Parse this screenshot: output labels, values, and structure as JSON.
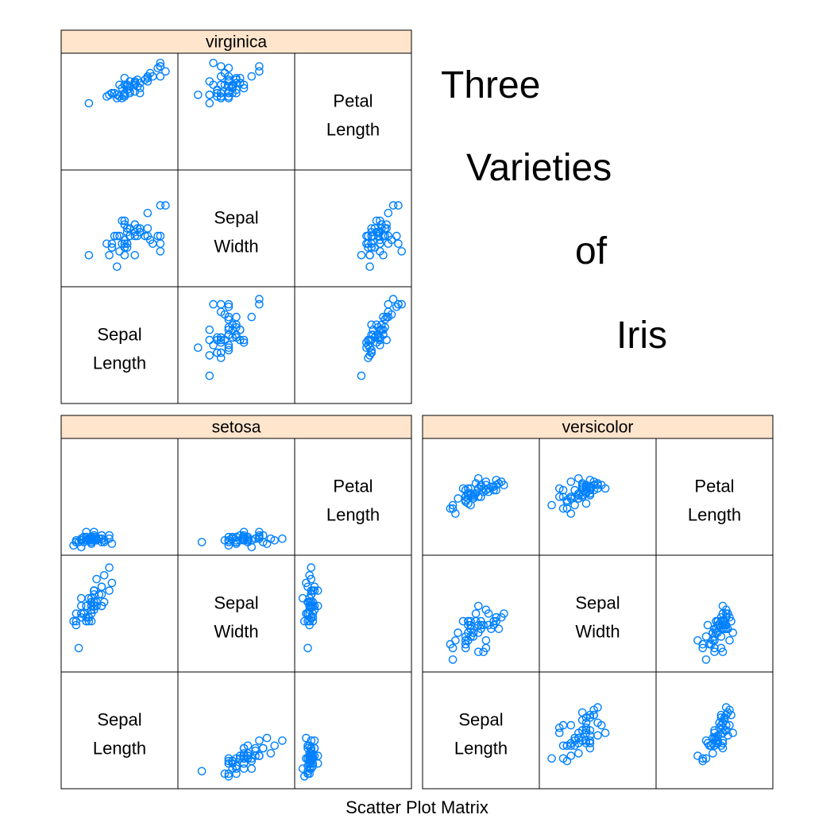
{
  "page": {
    "title_words": [
      "Three",
      "Varieties",
      "of",
      "Iris"
    ],
    "xlabel": "Scatter Plot Matrix"
  },
  "style": {
    "strip_bg": "#ffe5cc",
    "point_color": "#0080ff",
    "frame_color": "#000000"
  },
  "chart_data": {
    "type": "scatter",
    "variables": [
      {
        "name": "Sepal.Length",
        "label": [
          "Sepal",
          "Length"
        ]
      },
      {
        "name": "Sepal.Width",
        "label": [
          "Sepal",
          "Width"
        ]
      },
      {
        "name": "Petal.Length",
        "label": [
          "Petal",
          "Length"
        ]
      }
    ],
    "ranges": {
      "Sepal.Length": [
        4.0,
        8.2
      ],
      "Sepal.Width": [
        1.8,
        4.6
      ],
      "Petal.Length": [
        0.8,
        7.2
      ]
    },
    "panels": [
      {
        "species": "setosa",
        "points": [
          [
            5.1,
            3.5,
            1.4
          ],
          [
            4.9,
            3.0,
            1.4
          ],
          [
            4.7,
            3.2,
            1.3
          ],
          [
            4.6,
            3.1,
            1.5
          ],
          [
            5.0,
            3.6,
            1.4
          ],
          [
            5.4,
            3.9,
            1.7
          ],
          [
            4.6,
            3.4,
            1.4
          ],
          [
            5.0,
            3.4,
            1.5
          ],
          [
            4.4,
            2.9,
            1.4
          ],
          [
            4.9,
            3.1,
            1.5
          ],
          [
            5.4,
            3.7,
            1.5
          ],
          [
            4.8,
            3.4,
            1.6
          ],
          [
            4.8,
            3.0,
            1.4
          ],
          [
            4.3,
            3.0,
            1.1
          ],
          [
            5.8,
            4.0,
            1.2
          ],
          [
            5.7,
            4.4,
            1.5
          ],
          [
            5.4,
            3.9,
            1.3
          ],
          [
            5.1,
            3.5,
            1.4
          ],
          [
            5.7,
            3.8,
            1.7
          ],
          [
            5.1,
            3.8,
            1.5
          ],
          [
            5.4,
            3.4,
            1.7
          ],
          [
            5.1,
            3.7,
            1.5
          ],
          [
            4.6,
            3.6,
            1.0
          ],
          [
            5.1,
            3.3,
            1.7
          ],
          [
            4.8,
            3.4,
            1.9
          ],
          [
            5.0,
            3.0,
            1.6
          ],
          [
            5.0,
            3.4,
            1.6
          ],
          [
            5.2,
            3.5,
            1.5
          ],
          [
            5.2,
            3.4,
            1.4
          ],
          [
            4.7,
            3.2,
            1.6
          ],
          [
            4.8,
            3.1,
            1.6
          ],
          [
            5.4,
            3.4,
            1.5
          ],
          [
            5.2,
            4.1,
            1.5
          ],
          [
            5.5,
            4.2,
            1.4
          ],
          [
            4.9,
            3.1,
            1.5
          ],
          [
            5.0,
            3.2,
            1.2
          ],
          [
            5.5,
            3.5,
            1.3
          ],
          [
            4.9,
            3.6,
            1.4
          ],
          [
            4.4,
            3.0,
            1.3
          ],
          [
            5.1,
            3.4,
            1.5
          ],
          [
            5.0,
            3.5,
            1.3
          ],
          [
            4.5,
            2.3,
            1.3
          ],
          [
            4.4,
            3.2,
            1.3
          ],
          [
            5.0,
            3.5,
            1.6
          ],
          [
            5.1,
            3.8,
            1.9
          ],
          [
            4.8,
            3.0,
            1.4
          ],
          [
            5.1,
            3.8,
            1.6
          ],
          [
            4.6,
            3.2,
            1.4
          ],
          [
            5.3,
            3.7,
            1.5
          ],
          [
            5.0,
            3.3,
            1.4
          ]
        ]
      },
      {
        "species": "versicolor",
        "points": [
          [
            7.0,
            3.2,
            4.7
          ],
          [
            6.4,
            3.2,
            4.5
          ],
          [
            6.9,
            3.1,
            4.9
          ],
          [
            5.5,
            2.3,
            4.0
          ],
          [
            6.5,
            2.8,
            4.6
          ],
          [
            5.7,
            2.8,
            4.5
          ],
          [
            6.3,
            3.3,
            4.7
          ],
          [
            4.9,
            2.4,
            3.3
          ],
          [
            6.6,
            2.9,
            4.6
          ],
          [
            5.2,
            2.7,
            3.9
          ],
          [
            5.0,
            2.0,
            3.5
          ],
          [
            5.9,
            3.0,
            4.2
          ],
          [
            6.0,
            2.2,
            4.0
          ],
          [
            6.1,
            2.9,
            4.7
          ],
          [
            5.6,
            2.9,
            3.6
          ],
          [
            6.7,
            3.1,
            4.4
          ],
          [
            5.6,
            3.0,
            4.5
          ],
          [
            5.8,
            2.7,
            4.1
          ],
          [
            6.2,
            2.2,
            4.5
          ],
          [
            5.6,
            2.5,
            3.9
          ],
          [
            5.9,
            3.2,
            4.8
          ],
          [
            6.1,
            2.8,
            4.0
          ],
          [
            6.3,
            2.5,
            4.9
          ],
          [
            6.1,
            2.8,
            4.7
          ],
          [
            6.4,
            2.9,
            4.3
          ],
          [
            6.6,
            3.0,
            4.4
          ],
          [
            6.8,
            2.8,
            4.8
          ],
          [
            6.7,
            3.0,
            5.0
          ],
          [
            6.0,
            2.9,
            4.5
          ],
          [
            5.7,
            2.6,
            3.5
          ],
          [
            5.5,
            2.4,
            3.8
          ],
          [
            5.5,
            2.4,
            3.7
          ],
          [
            5.8,
            2.7,
            3.9
          ],
          [
            6.0,
            2.7,
            5.1
          ],
          [
            5.4,
            3.0,
            4.5
          ],
          [
            6.0,
            3.4,
            4.5
          ],
          [
            6.7,
            3.1,
            4.7
          ],
          [
            6.3,
            2.3,
            4.4
          ],
          [
            5.6,
            3.0,
            4.1
          ],
          [
            5.5,
            2.5,
            4.0
          ],
          [
            5.5,
            2.6,
            4.4
          ],
          [
            6.1,
            3.0,
            4.6
          ],
          [
            5.8,
            2.6,
            4.0
          ],
          [
            5.0,
            2.3,
            3.3
          ],
          [
            5.6,
            2.7,
            4.2
          ],
          [
            5.7,
            3.0,
            4.2
          ],
          [
            5.7,
            2.9,
            4.2
          ],
          [
            6.2,
            2.9,
            4.3
          ],
          [
            5.1,
            2.5,
            3.0
          ],
          [
            5.7,
            2.8,
            4.1
          ]
        ]
      },
      {
        "species": "virginica",
        "points": [
          [
            6.3,
            3.3,
            6.0
          ],
          [
            5.8,
            2.7,
            5.1
          ],
          [
            7.1,
            3.0,
            5.9
          ],
          [
            6.3,
            2.9,
            5.6
          ],
          [
            6.5,
            3.0,
            5.8
          ],
          [
            7.6,
            3.0,
            6.6
          ],
          [
            4.9,
            2.5,
            4.5
          ],
          [
            7.3,
            2.9,
            6.3
          ],
          [
            6.7,
            2.5,
            5.8
          ],
          [
            7.2,
            3.6,
            6.1
          ],
          [
            6.5,
            3.2,
            5.1
          ],
          [
            6.4,
            2.7,
            5.3
          ],
          [
            6.8,
            3.0,
            5.5
          ],
          [
            5.7,
            2.5,
            5.0
          ],
          [
            5.8,
            2.8,
            5.1
          ],
          [
            6.4,
            3.2,
            5.3
          ],
          [
            6.5,
            3.0,
            5.5
          ],
          [
            7.7,
            3.8,
            6.7
          ],
          [
            7.7,
            2.6,
            6.9
          ],
          [
            6.0,
            2.2,
            5.0
          ],
          [
            6.9,
            3.2,
            5.7
          ],
          [
            5.6,
            2.8,
            4.9
          ],
          [
            7.7,
            2.8,
            6.7
          ],
          [
            6.3,
            2.7,
            4.9
          ],
          [
            6.7,
            3.3,
            5.7
          ],
          [
            7.2,
            3.2,
            6.0
          ],
          [
            6.2,
            2.8,
            4.8
          ],
          [
            6.1,
            3.0,
            4.9
          ],
          [
            6.4,
            2.8,
            5.6
          ],
          [
            7.2,
            3.0,
            5.8
          ],
          [
            7.4,
            2.8,
            6.1
          ],
          [
            7.9,
            3.8,
            6.4
          ],
          [
            6.4,
            2.8,
            5.6
          ],
          [
            6.3,
            2.8,
            5.1
          ],
          [
            6.1,
            2.6,
            5.6
          ],
          [
            7.7,
            3.0,
            6.1
          ],
          [
            6.3,
            3.4,
            5.6
          ],
          [
            6.4,
            3.1,
            5.5
          ],
          [
            6.0,
            3.0,
            4.8
          ],
          [
            6.9,
            3.1,
            5.4
          ],
          [
            6.7,
            3.1,
            5.6
          ],
          [
            6.9,
            3.1,
            5.1
          ],
          [
            5.8,
            2.7,
            5.1
          ],
          [
            6.8,
            3.2,
            5.9
          ],
          [
            6.7,
            3.3,
            5.7
          ],
          [
            6.7,
            3.0,
            5.2
          ],
          [
            6.3,
            2.5,
            5.0
          ],
          [
            6.5,
            3.0,
            5.2
          ],
          [
            6.2,
            3.4,
            5.4
          ],
          [
            5.9,
            3.0,
            5.1
          ]
        ]
      }
    ]
  }
}
